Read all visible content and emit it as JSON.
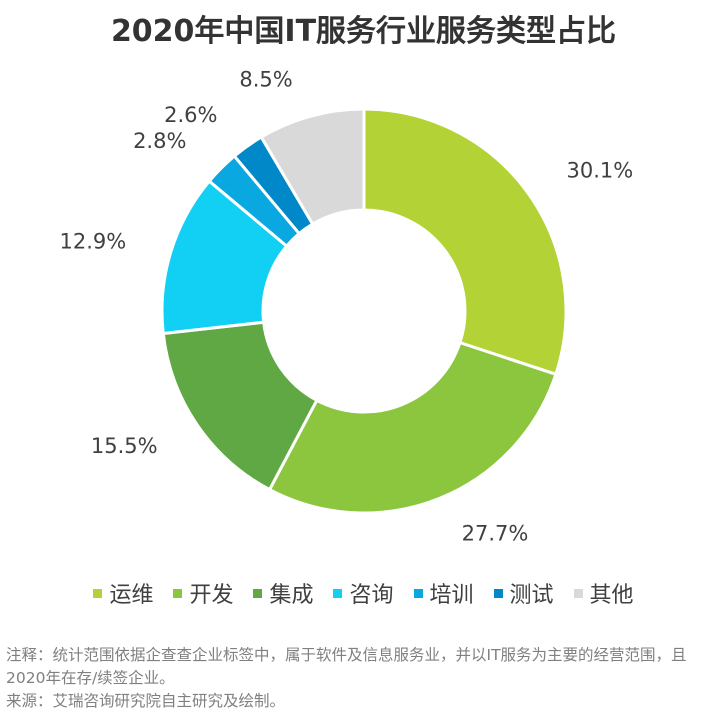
{
  "title": "2020年中国IT服务行业服务类型占比",
  "chart_data": {
    "type": "pie",
    "donut": true,
    "categories": [
      "运维",
      "开发",
      "集成",
      "咨询",
      "培训",
      "测试",
      "其他"
    ],
    "values": [
      30.1,
      27.7,
      15.5,
      12.9,
      2.8,
      2.6,
      8.5
    ],
    "labels": [
      "30.1%",
      "27.7%",
      "15.5%",
      "12.9%",
      "2.8%",
      "2.6%",
      "8.5%"
    ],
    "colors": [
      "#b2d235",
      "#8cc63f",
      "#5fa843",
      "#12d0f4",
      "#0aa8e0",
      "#0088c8",
      "#d9d9d9"
    ],
    "legend_position": "bottom"
  },
  "legend": [
    {
      "label": "运维",
      "color": "#b2d235"
    },
    {
      "label": "开发",
      "color": "#8cc63f"
    },
    {
      "label": "集成",
      "color": "#5fa843"
    },
    {
      "label": "咨询",
      "color": "#12d0f4"
    },
    {
      "label": "培训",
      "color": "#0aa8e0"
    },
    {
      "label": "测试",
      "color": "#0088c8"
    },
    {
      "label": "其他",
      "color": "#d9d9d9"
    }
  ],
  "footnote": {
    "note": "注释：统计范围依据企查查企业标签中，属于软件及信息服务业，并以IT服务为主要的经营范围，且2020年在存/续签企业。",
    "source": "来源：艾瑞咨询研究院自主研究及绘制。"
  }
}
